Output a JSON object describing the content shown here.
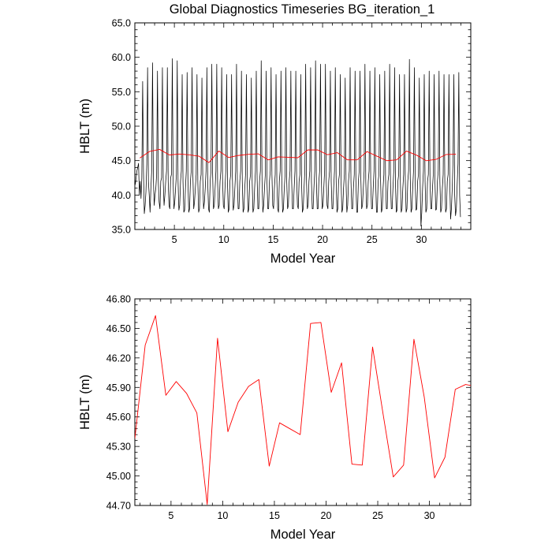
{
  "figure": {
    "title": "Global Diagnostics Timeseries BG_iteration_1"
  },
  "chart_data": [
    {
      "type": "line",
      "title": "Global Diagnostics Timeseries BG_iteration_1",
      "xlabel": "Model Year",
      "ylabel": "HBLT (m)",
      "xlim": [
        1,
        35
      ],
      "ylim": [
        35.0,
        65.0
      ],
      "xticks": [
        5,
        10,
        15,
        20,
        25,
        30
      ],
      "yticks": [
        35.0,
        40.0,
        45.0,
        50.0,
        55.0,
        60.0,
        65.0
      ],
      "ytick_labels": [
        "35.0",
        "40.0",
        "45.0",
        "50.0",
        "55.0",
        "60.0",
        "65.0"
      ],
      "grid": false,
      "series": [
        {
          "color": "#000000",
          "style": "monthly",
          "x_start": 1.04,
          "x_step": 0.0833333,
          "values": [
            41.5,
            42.5,
            43.5,
            44.0,
            44.6,
            40.0,
            42.0,
            39.5,
            42.5,
            56.5,
            43.5,
            37.3,
            38.5,
            40.5,
            44.5,
            58.5,
            42.0,
            40.0,
            37.5,
            41.0,
            43.5,
            59.2,
            42.5,
            38.5,
            40.0,
            41.0,
            43.0,
            58.0,
            42.0,
            39.0,
            38.0,
            42.0,
            42.5,
            58.5,
            42.0,
            38.5,
            40.0,
            42.0,
            43.5,
            58.5,
            42.0,
            38.5,
            38.0,
            42.5,
            43.0,
            59.8,
            42.0,
            38.0,
            39.0,
            41.0,
            43.0,
            59.5,
            42.0,
            37.8,
            38.5,
            42.0,
            43.5,
            57.5,
            42.0,
            37.5,
            37.8,
            41.0,
            43.5,
            57.8,
            42.0,
            37.5,
            38.0,
            42.0,
            43.5,
            58.5,
            43.0,
            38.0,
            39.0,
            41.0,
            43.0,
            57.5,
            42.0,
            37.5,
            38.0,
            42.0,
            43.0,
            57.0,
            42.5,
            38.0,
            39.0,
            41.0,
            43.5,
            58.5,
            42.0,
            38.0,
            37.5,
            42.0,
            43.5,
            59.0,
            43.0,
            38.0,
            38.5,
            41.0,
            43.5,
            59.0,
            42.0,
            38.0,
            38.5,
            42.0,
            43.5,
            58.5,
            42.5,
            38.5,
            38.0,
            41.0,
            43.5,
            57.5,
            42.0,
            37.5,
            38.0,
            42.0,
            43.0,
            57.5,
            42.5,
            37.8,
            38.5,
            41.0,
            43.5,
            59.0,
            42.0,
            38.0,
            38.0,
            42.0,
            43.5,
            58.0,
            42.0,
            37.5,
            38.0,
            41.0,
            43.0,
            57.5,
            42.0,
            37.5,
            38.0,
            42.0,
            43.0,
            57.0,
            42.0,
            37.5,
            38.0,
            41.0,
            43.5,
            58.0,
            42.5,
            38.0,
            38.0,
            42.0,
            43.5,
            59.5,
            42.0,
            37.5,
            38.5,
            41.0,
            43.0,
            58.0,
            42.0,
            38.0,
            38.0,
            42.0,
            43.5,
            58.5,
            43.0,
            38.5,
            38.0,
            41.0,
            43.0,
            57.5,
            42.0,
            38.0,
            37.5,
            42.0,
            43.5,
            58.0,
            42.0,
            37.5,
            38.0,
            41.0,
            43.0,
            58.5,
            42.0,
            38.0,
            38.5,
            42.0,
            43.5,
            58.0,
            42.0,
            38.0,
            38.0,
            41.0,
            43.5,
            58.0,
            42.5,
            38.5,
            38.0,
            42.0,
            43.0,
            57.5,
            42.0,
            37.5,
            38.0,
            41.0,
            43.5,
            59.0,
            42.0,
            38.0,
            38.5,
            42.0,
            43.5,
            58.5,
            42.0,
            38.0,
            38.0,
            41.0,
            43.5,
            59.5,
            42.0,
            38.0,
            38.0,
            42.0,
            43.5,
            59.0,
            42.5,
            38.0,
            38.5,
            41.0,
            43.5,
            59.0,
            42.0,
            38.5,
            38.0,
            42.0,
            43.5,
            58.0,
            42.0,
            38.0,
            38.0,
            41.0,
            43.5,
            58.5,
            42.0,
            37.5,
            38.0,
            42.0,
            43.0,
            57.5,
            42.0,
            37.5,
            38.0,
            41.0,
            43.0,
            57.0,
            42.0,
            37.5,
            38.5,
            42.0,
            43.5,
            58.5,
            42.0,
            38.0,
            38.0,
            41.0,
            43.0,
            58.0,
            42.0,
            37.5,
            37.5,
            42.0,
            43.5,
            58.0,
            42.5,
            38.0,
            38.5,
            41.0,
            43.5,
            59.0,
            42.0,
            38.0,
            38.5,
            42.0,
            43.5,
            58.0,
            42.0,
            38.0,
            38.0,
            41.0,
            43.5,
            58.5,
            42.0,
            37.5,
            37.5,
            42.0,
            43.0,
            57.5,
            42.0,
            37.5,
            38.0,
            41.0,
            43.0,
            58.0,
            42.5,
            38.0,
            38.0,
            42.0,
            43.0,
            59.0,
            42.0,
            38.0,
            38.0,
            41.0,
            43.5,
            58.5,
            42.0,
            37.5,
            37.8,
            42.0,
            43.0,
            57.5,
            42.0,
            37.5,
            38.0,
            41.0,
            43.0,
            57.5,
            42.0,
            37.5,
            38.0,
            42.0,
            43.5,
            59.7,
            42.5,
            37.5,
            38.0,
            41.0,
            43.5,
            58.5,
            42.0,
            37.8,
            38.0,
            42.0,
            43.0,
            57.0,
            42.0,
            35.5,
            37.5,
            41.0,
            43.5,
            57.5,
            42.0,
            37.5,
            38.0,
            42.0,
            43.0,
            58.0,
            42.0,
            38.0,
            38.0,
            41.0,
            43.0,
            57.5,
            42.0,
            37.8,
            38.0,
            42.0,
            43.5,
            58.0,
            42.0,
            37.5,
            38.0,
            41.0,
            43.0,
            57.5,
            42.0,
            37.5,
            38.0,
            42.0,
            43.0,
            57.5,
            42.0,
            36.5,
            38.0,
            41.0,
            45.0,
            57.5,
            40.0,
            37.0,
            38.0,
            41.5,
            44.5,
            57.8,
            40.0,
            36.8
          ]
        },
        {
          "color": "#ff0000",
          "style": "annual",
          "x": [
            1.5,
            2.5,
            3.5,
            4.5,
            5.5,
            6.5,
            7.5,
            8.5,
            9.5,
            10.5,
            11.5,
            12.5,
            13.5,
            14.5,
            15.5,
            16.5,
            17.5,
            18.5,
            19.5,
            20.5,
            21.5,
            22.5,
            23.5,
            24.5,
            25.5,
            26.5,
            27.5,
            28.5,
            29.5,
            30.5,
            31.5,
            32.5,
            33.5
          ],
          "values": [
            45.38,
            46.33,
            46.63,
            45.82,
            45.96,
            45.84,
            45.64,
            44.71,
            46.4,
            45.45,
            45.75,
            45.91,
            45.98,
            45.1,
            45.54,
            45.48,
            45.42,
            46.55,
            46.56,
            45.85,
            46.15,
            45.12,
            45.11,
            46.31,
            45.64,
            44.99,
            45.11,
            46.39,
            45.8,
            44.98,
            45.19,
            45.88,
            45.93
          ]
        }
      ]
    },
    {
      "type": "line",
      "title": "",
      "xlabel": "Model Year",
      "ylabel": "HBLT (m)",
      "xlim": [
        1.5,
        34
      ],
      "ylim": [
        44.7,
        46.8
      ],
      "xticks": [
        5,
        10,
        15,
        20,
        25,
        30
      ],
      "yticks": [
        44.7,
        45.0,
        45.3,
        45.6,
        45.9,
        46.2,
        46.5,
        46.8
      ],
      "ytick_labels": [
        "44.70",
        "45.00",
        "45.30",
        "45.60",
        "45.90",
        "46.20",
        "46.50",
        "46.80"
      ],
      "grid": false,
      "series": [
        {
          "color": "#ff0000",
          "x": [
            1.5,
            2.5,
            3.5,
            4.5,
            5.5,
            6.5,
            7.5,
            8.5,
            9.5,
            10.5,
            11.5,
            12.5,
            13.5,
            14.5,
            15.5,
            16.5,
            17.5,
            18.5,
            19.5,
            20.5,
            21.5,
            22.5,
            23.5,
            24.5,
            25.5,
            26.5,
            27.5,
            28.5,
            29.5,
            30.5,
            31.5,
            32.5,
            33.5,
            34
          ],
          "values": [
            45.38,
            46.33,
            46.63,
            45.82,
            45.96,
            45.84,
            45.64,
            44.71,
            46.4,
            45.45,
            45.75,
            45.91,
            45.98,
            45.1,
            45.54,
            45.48,
            45.42,
            46.55,
            46.56,
            45.85,
            46.15,
            45.12,
            45.11,
            46.31,
            45.64,
            44.99,
            45.11,
            46.39,
            45.8,
            44.98,
            45.19,
            45.88,
            45.93,
            45.92
          ]
        }
      ]
    }
  ]
}
